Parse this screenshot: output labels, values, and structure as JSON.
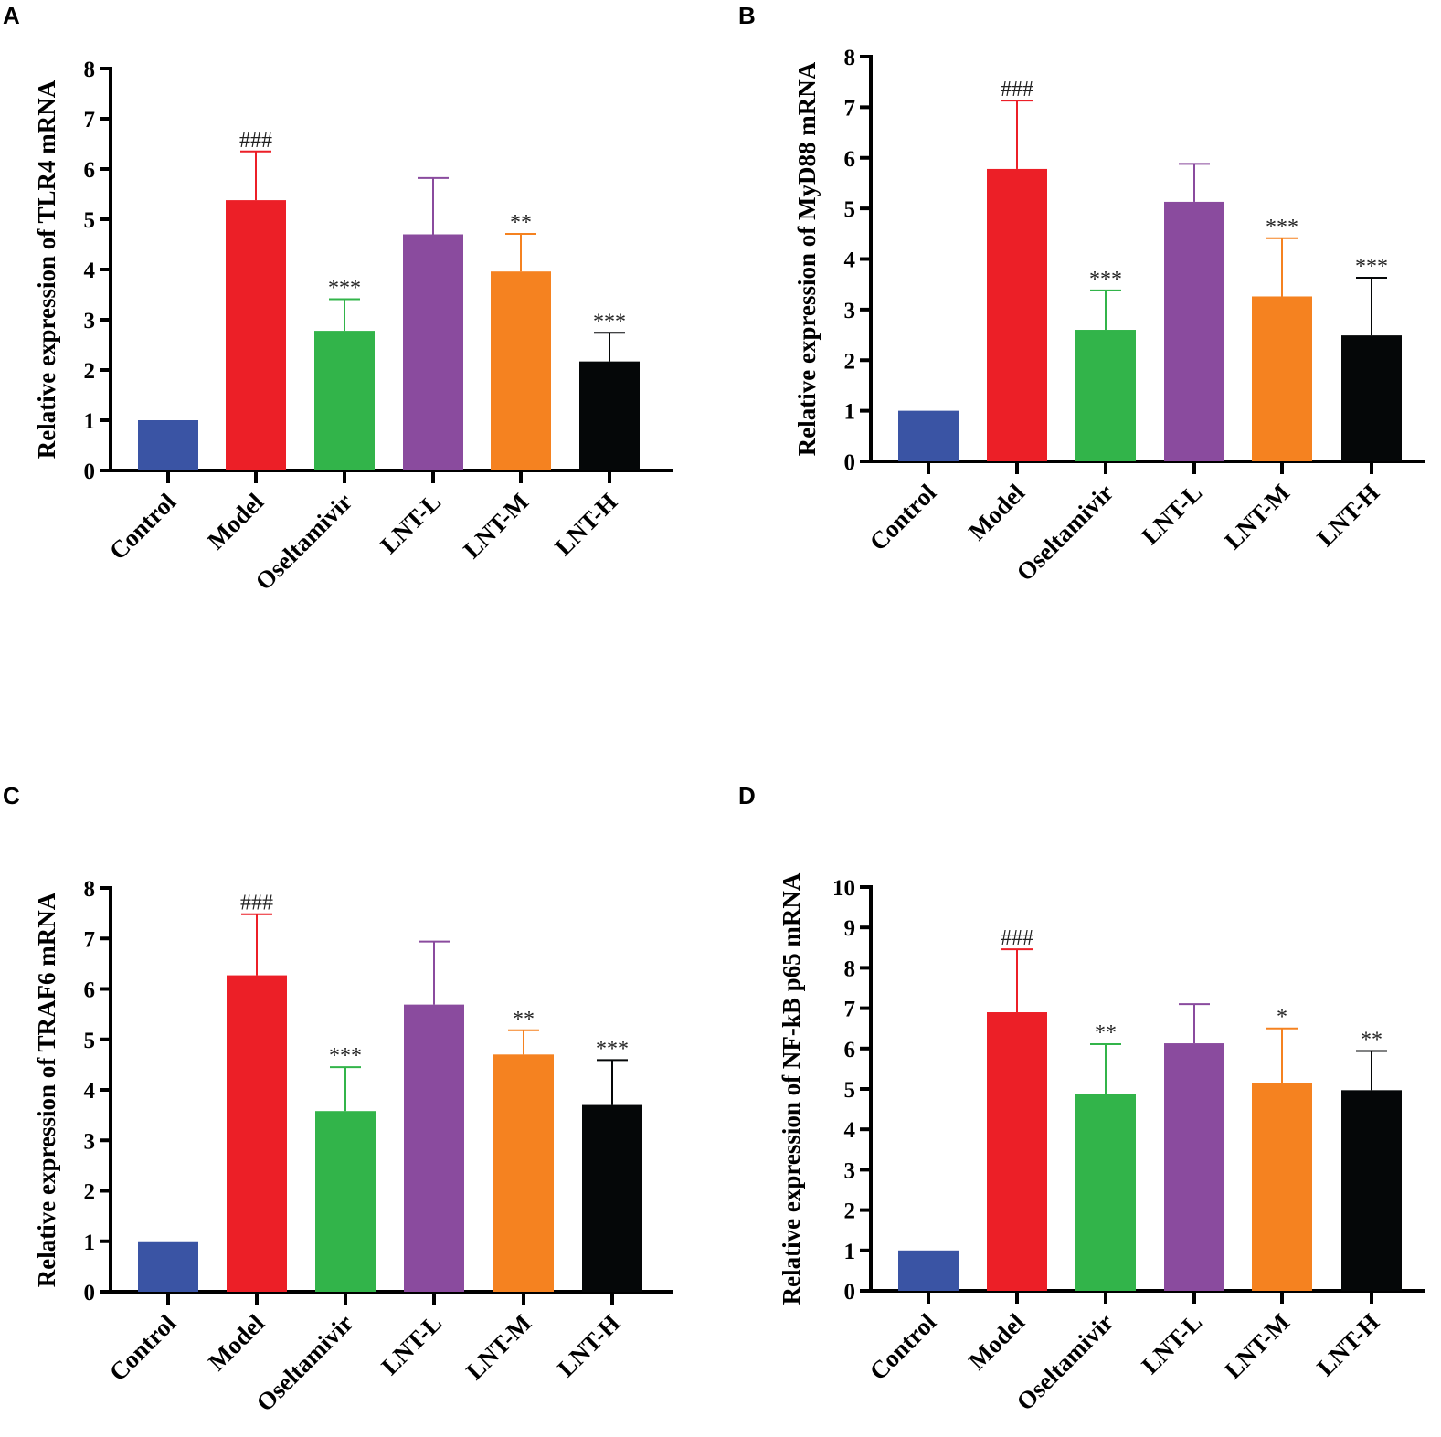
{
  "categories": [
    "Control",
    "Model",
    "Oseltamivir",
    "LNT-L",
    "LNT-M",
    "LNT-H"
  ],
  "colors": [
    "#3a54a4",
    "#ec1f27",
    "#32b44a",
    "#8a4b9e",
    "#f58220",
    "#050708"
  ],
  "chart_data": [
    {
      "type": "bar",
      "panel": "A",
      "ylabel": "Relative expression of TLR4 mRNA",
      "ylim": [
        0,
        8
      ],
      "ytick_labels": [
        "0",
        "1",
        "2",
        "3",
        "4",
        "5",
        "6",
        "7",
        "8"
      ],
      "series": [
        {
          "name": "TLR4",
          "values": [
            1.0,
            5.38,
            2.78,
            4.7,
            3.96,
            2.17
          ],
          "errors": [
            0.0,
            0.97,
            0.63,
            1.12,
            0.75,
            0.57
          ]
        }
      ],
      "annotations": [
        "",
        "###",
        "***",
        "",
        "**",
        "***"
      ]
    },
    {
      "type": "bar",
      "panel": "B",
      "ylabel": "Relative expression of MyD88 mRNA",
      "ylim": [
        0,
        8
      ],
      "ytick_labels": [
        "0",
        "1",
        "2",
        "3",
        "4",
        "5",
        "6",
        "7",
        "8"
      ],
      "series": [
        {
          "name": "MyD88",
          "values": [
            1.0,
            5.78,
            2.6,
            5.13,
            3.26,
            2.49
          ],
          "errors": [
            0.0,
            1.35,
            0.78,
            0.75,
            1.15,
            1.14
          ]
        }
      ],
      "annotations": [
        "",
        "###",
        "***",
        "",
        "***",
        "***"
      ]
    },
    {
      "type": "bar",
      "panel": "C",
      "ylabel": "Relative expression of TRAF6 mRNA",
      "ylim": [
        0,
        8
      ],
      "ytick_labels": [
        "0",
        "1",
        "2",
        "3",
        "4",
        "5",
        "6",
        "7",
        "8"
      ],
      "series": [
        {
          "name": "TRAF6",
          "values": [
            1.0,
            6.27,
            3.58,
            5.69,
            4.7,
            3.7
          ],
          "errors": [
            0.0,
            1.21,
            0.87,
            1.25,
            0.48,
            0.89
          ]
        }
      ],
      "annotations": [
        "",
        "###",
        "***",
        "",
        "**",
        "***"
      ]
    },
    {
      "type": "bar",
      "panel": "D",
      "ylabel": "Relative expression of NF-kB p65  mRNA",
      "ylim": [
        0,
        10
      ],
      "ytick_labels": [
        "0",
        "1",
        "2",
        "3",
        "4",
        "5",
        "6",
        "7",
        "8",
        "9",
        "10"
      ],
      "series": [
        {
          "name": "NF-kB p65",
          "values": [
            1.0,
            6.9,
            4.88,
            6.13,
            5.14,
            4.97
          ],
          "errors": [
            0.0,
            1.56,
            1.23,
            0.97,
            1.36,
            0.97
          ]
        }
      ],
      "annotations": [
        "",
        "###",
        "**",
        "",
        "*",
        "**"
      ]
    }
  ]
}
